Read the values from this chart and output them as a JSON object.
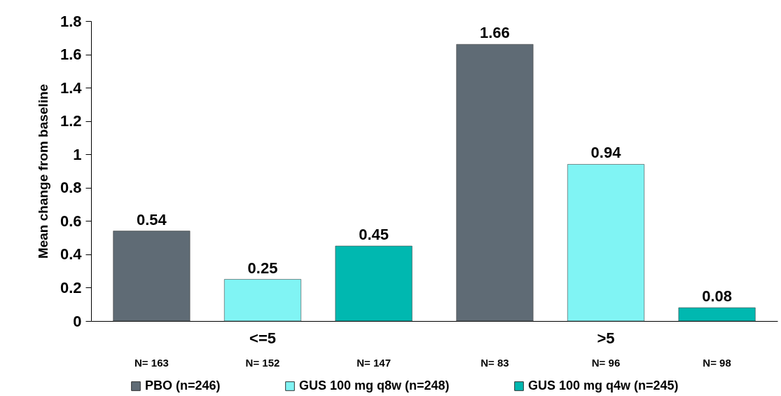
{
  "chart_data": {
    "type": "bar",
    "ylabel": "Mean change from baseline",
    "categories": [
      "<=5",
      ">5"
    ],
    "series": [
      {
        "name": "PBO (n=246)",
        "color": "#5f6b75",
        "values": [
          0.54,
          1.66
        ]
      },
      {
        "name": "GUS 100 mg q8w (n=248)",
        "color": "#80f4f4",
        "values": [
          0.25,
          0.94
        ]
      },
      {
        "name": "GUS 100 mg q4w (n=245)",
        "color": "#00b8b0",
        "values": [
          0.45,
          0.08
        ]
      }
    ],
    "ylim": [
      0,
      1.8
    ],
    "yticks": [
      0,
      0.2,
      0.4,
      0.6,
      0.8,
      1,
      1.2,
      1.4,
      1.6,
      1.8
    ],
    "data_labels": true,
    "legend": "bottom",
    "grid": false,
    "annotations": [
      "N= 163",
      "N= 152",
      "N= 147",
      "N= 83",
      "N= 96",
      "N= 98"
    ]
  }
}
